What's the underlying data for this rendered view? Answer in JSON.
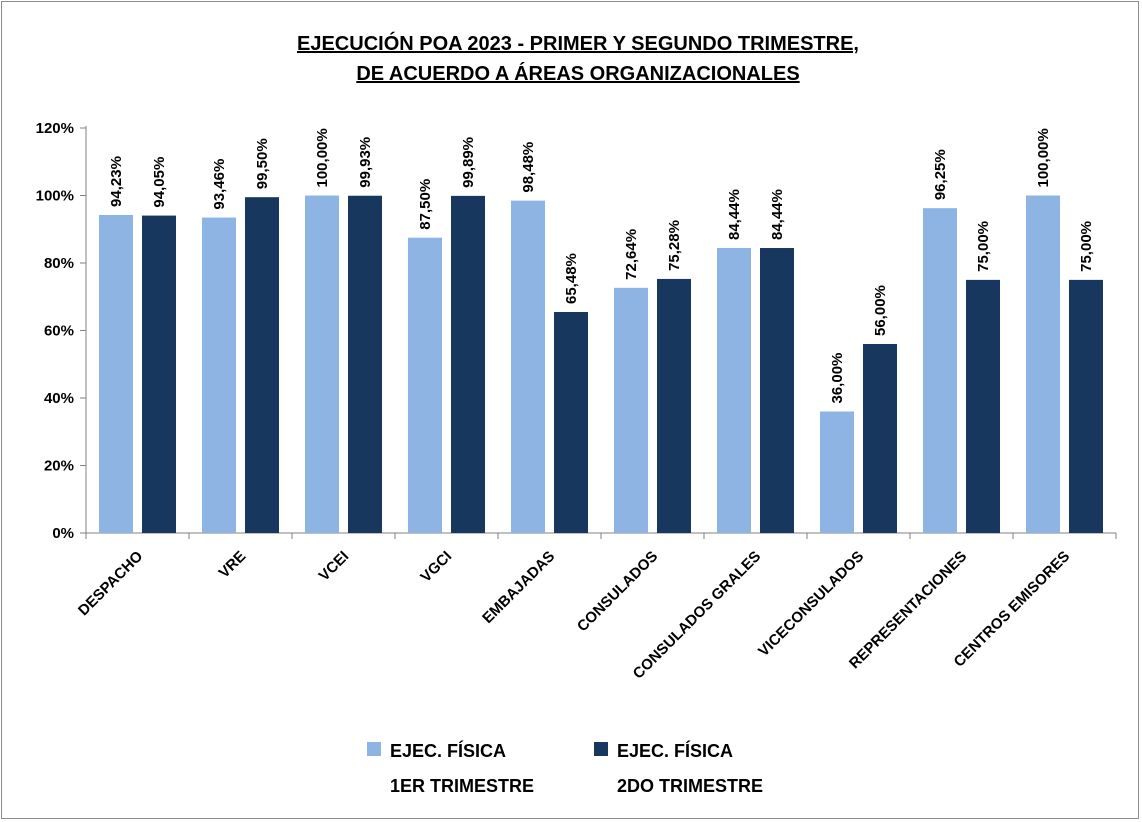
{
  "chart_data": {
    "type": "bar",
    "title_lines": [
      "EJECUCIÓN POA 2023 - PRIMER Y SEGUNDO TRIMESTRE,",
      "DE ACUERDO A ÁREAS ORGANIZACIONALES"
    ],
    "categories": [
      "DESPACHO",
      "VRE",
      "VCEI",
      "VGCI",
      "EMBAJADAS",
      "CONSULADOS",
      "CONSULADOS GRALES",
      "VICECONSULADOS",
      "REPRESENTACIONES",
      "CENTROS EMISORES"
    ],
    "series": [
      {
        "name_lines": [
          "EJEC. FÍSICA",
          "1ER TRIMESTRE"
        ],
        "color": "#8eb4e3",
        "values": [
          94.23,
          93.46,
          100.0,
          87.5,
          98.48,
          72.64,
          84.44,
          36.0,
          96.25,
          100.0
        ],
        "labels": [
          "94,23%",
          "93,46%",
          "100,00%",
          "87,50%",
          "98,48%",
          "72,64%",
          "84,44%",
          "36,00%",
          "96,25%",
          "100,00%"
        ]
      },
      {
        "name_lines": [
          "EJEC. FÍSICA",
          "2DO TRIMESTRE"
        ],
        "color": "#17375e",
        "values": [
          94.05,
          99.5,
          99.93,
          99.89,
          65.48,
          75.28,
          84.44,
          56.0,
          75.0,
          75.0
        ],
        "labels": [
          "94,05%",
          "99,50%",
          "99,93%",
          "99,89%",
          "65,48%",
          "75,28%",
          "84,44%",
          "56,00%",
          "75,00%",
          "75,00%"
        ]
      }
    ],
    "y_ticks": [
      "0%",
      "20%",
      "40%",
      "60%",
      "80%",
      "100%",
      "120%"
    ],
    "y_tick_values": [
      0,
      20,
      40,
      60,
      80,
      100,
      120
    ],
    "ylim": [
      0,
      120
    ],
    "grid": false,
    "legend": "bottom"
  }
}
